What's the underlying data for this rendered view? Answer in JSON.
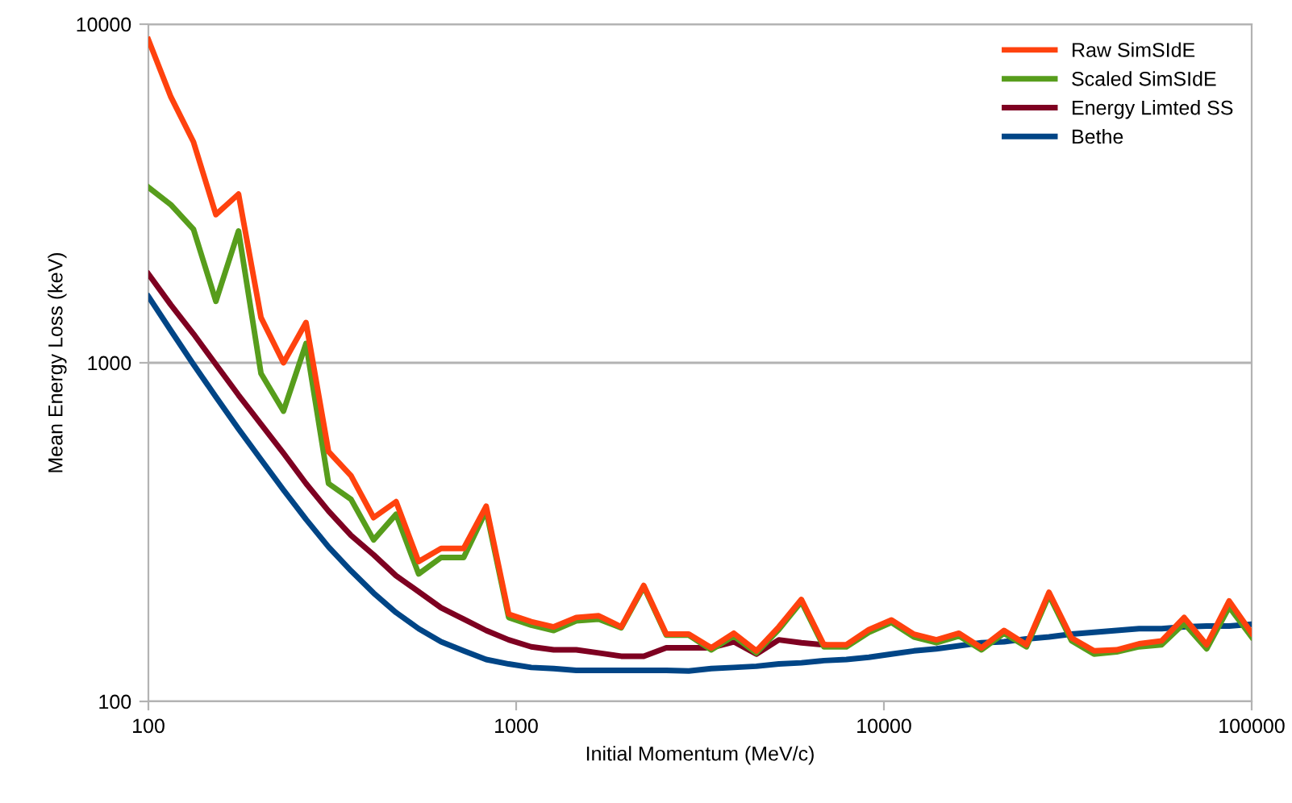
{
  "chart_data": {
    "type": "line",
    "xlabel": "Initial Momentum (MeV/c)",
    "ylabel": "Mean Energy Loss (keV)",
    "log": "xy",
    "xlim": [
      100,
      100000
    ],
    "ylim": [
      100,
      10000
    ],
    "xticks": [
      100,
      1000,
      10000,
      100000
    ],
    "yticks": [
      100,
      1000,
      10000
    ],
    "grid": "y",
    "legend": "top right",
    "marker": "none",
    "line_style": "solid",
    "x": [
      100,
      115.1,
      132.6,
      152.6,
      175.8,
      202.4,
      233.0,
      268.3,
      308.9,
      355.7,
      409.6,
      471.6,
      543.0,
      625.2,
      719.9,
      828.9,
      954.5,
      1099,
      1265,
      1457,
      1677,
      1931,
      2223,
      2560,
      2947,
      3393,
      3907,
      4499,
      5179,
      5964,
      6866,
      7906,
      9103,
      10481,
      12068,
      13895,
      15999,
      18421,
      21210,
      24421,
      28118,
      32375,
      37276,
      42919,
      49417,
      56899,
      65513,
      75431,
      86851,
      100000
    ],
    "series": [
      {
        "name": "Raw SimSIdE",
        "color": "#ff420e",
        "values": [
          9000,
          6100,
          4490,
          2740,
          3150,
          1360,
          1000,
          1315,
          547,
          464,
          349,
          389,
          259,
          283,
          283,
          377,
          181,
          172,
          166,
          177,
          179,
          166,
          220,
          158,
          158,
          144,
          159,
          141,
          166,
          200,
          147,
          147,
          163,
          174,
          158,
          152,
          159,
          144,
          162,
          147,
          210,
          154,
          141,
          142,
          148,
          151,
          177,
          147,
          198,
          159
        ]
      },
      {
        "name": "Scaled SimSIdE",
        "color": "#579d1c",
        "values": [
          3300,
          2930,
          2480,
          1520,
          2450,
          930,
          720,
          1140,
          440,
          395,
          300,
          357,
          238,
          266,
          266,
          366,
          177,
          168,
          162,
          173,
          175,
          165,
          218,
          157,
          157,
          142,
          156,
          139,
          163,
          197,
          145,
          145,
          160,
          171,
          155,
          149,
          156,
          142,
          159,
          145,
          206,
          151,
          138,
          140,
          145,
          147,
          170,
          143,
          190,
          155
        ]
      },
      {
        "name": "Energy Limted SS",
        "color": "#7e0021",
        "values": [
          1830,
          1483,
          1218,
          989,
          803,
          659,
          541,
          440,
          365,
          309,
          271,
          235,
          211,
          189,
          175,
          162,
          152,
          145,
          142,
          142,
          139,
          136,
          136,
          144,
          144,
          144,
          150,
          138,
          152,
          149,
          147,
          null,
          null,
          null,
          null,
          null,
          null,
          null,
          null,
          null,
          null,
          null,
          null,
          null,
          null,
          null,
          null,
          null,
          null,
          null
        ]
      },
      {
        "name": "Bethe",
        "color": "#004586",
        "values": [
          1570,
          1245,
          989,
          793,
          638,
          518,
          421,
          345,
          286,
          243,
          209,
          183,
          164,
          150,
          141,
          133,
          129,
          126,
          125,
          123.5,
          123.5,
          123.5,
          123.5,
          123.5,
          123,
          125,
          126,
          127,
          129,
          130,
          132,
          133,
          135,
          138,
          141,
          143,
          146,
          149,
          150,
          153,
          155,
          158,
          160,
          162,
          164,
          164,
          166,
          167,
          167,
          169
        ]
      }
    ]
  }
}
